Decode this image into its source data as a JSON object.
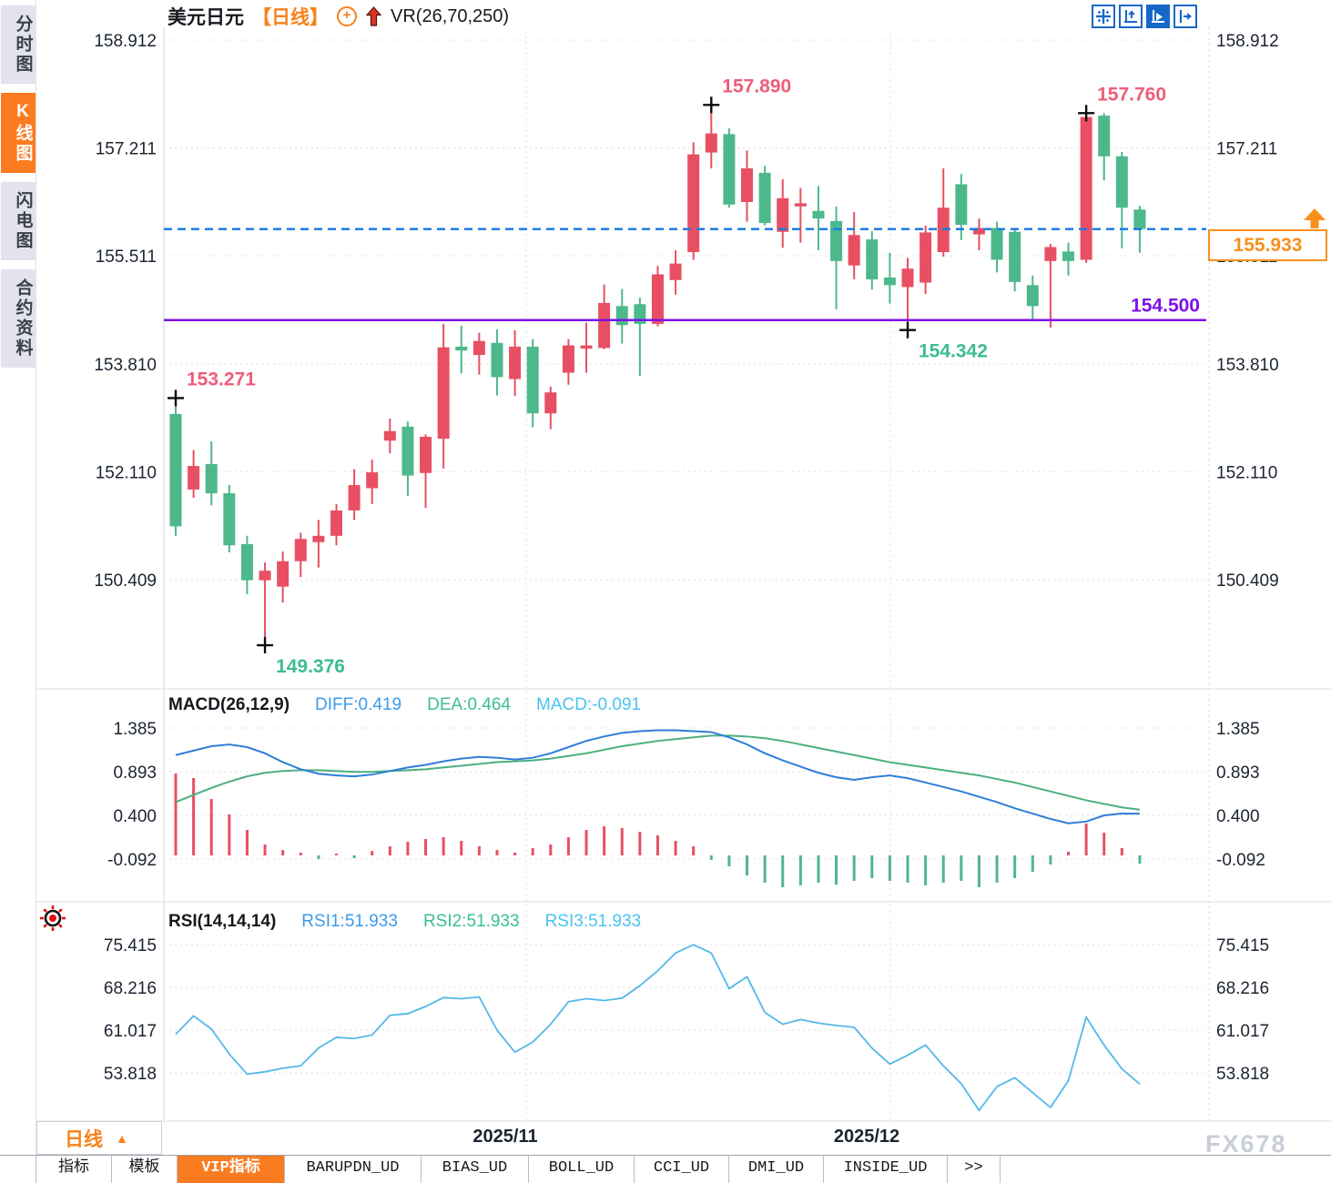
{
  "header": {
    "symbol": "美元日元",
    "period": "【日线】",
    "vr": "VR(26,70,250)"
  },
  "sidebar": {
    "items": [
      {
        "label": "分时图",
        "active": false
      },
      {
        "label": "K线图",
        "active": true
      },
      {
        "label": "闪电图",
        "active": false
      },
      {
        "label": "合约资料",
        "active": false
      }
    ]
  },
  "toolbar": {
    "icons": [
      "crosshair-icon",
      "axis-scale-icon",
      "auto-scale-icon",
      "go-to-latest-icon"
    ],
    "active_index": 2
  },
  "price_axis": {
    "labels": [
      "158.912",
      "157.211",
      "155.511",
      "153.810",
      "152.110",
      "150.409"
    ],
    "values": [
      158.912,
      157.211,
      155.511,
      153.81,
      152.11,
      150.409
    ]
  },
  "macd_axis": {
    "labels": [
      "1.385",
      "0.893",
      "0.400",
      "-0.092"
    ],
    "values": [
      1.385,
      0.893,
      0.4,
      -0.092
    ]
  },
  "rsi_axis": {
    "labels": [
      "75.415",
      "68.216",
      "61.017",
      "53.818"
    ],
    "values": [
      75.415,
      68.216,
      61.017,
      53.818
    ]
  },
  "macd_header": {
    "name": "MACD(26,12,9)",
    "diff": "DIFF:0.419",
    "dea": "DEA:0.464",
    "macd": "MACD:-0.091"
  },
  "rsi_header": {
    "name": "RSI(14,14,14)",
    "rsi1": "RSI1:51.933",
    "rsi2": "RSI2:51.933",
    "rsi3": "RSI3:51.933"
  },
  "current_price": {
    "label": "155.933",
    "value": 155.933
  },
  "support_line": {
    "label": "154.500",
    "value": 154.5
  },
  "markers": [
    {
      "text": "153.271",
      "price": 153.271,
      "candle": 0,
      "placement": "above",
      "color": "#ee5d78"
    },
    {
      "text": "149.376",
      "price": 149.376,
      "candle": 5,
      "placement": "below",
      "color": "#3dbd8d"
    },
    {
      "text": "157.890",
      "price": 157.89,
      "candle": 30,
      "placement": "above",
      "color": "#ee5d78"
    },
    {
      "text": "154.342",
      "price": 154.342,
      "candle": 41,
      "placement": "below",
      "color": "#3dbd8d"
    },
    {
      "text": "157.760",
      "price": 157.76,
      "candle": 51,
      "placement": "above",
      "color": "#ee5d78"
    }
  ],
  "xaxis": {
    "labels": [
      "2025/11",
      "2025/12"
    ]
  },
  "timeframe": {
    "label": "日线",
    "arrow": "▲"
  },
  "tabs": [
    {
      "label": "指标",
      "active": false
    },
    {
      "label": "模板",
      "active": false
    },
    {
      "label": "VIP指标",
      "active": true
    },
    {
      "label": "BARUPDN_UD",
      "active": false
    },
    {
      "label": "BIAS_UD",
      "active": false
    },
    {
      "label": "BOLL_UD",
      "active": false
    },
    {
      "label": "CCI_UD",
      "active": false
    },
    {
      "label": "DMI_UD",
      "active": false
    },
    {
      "label": "INSIDE_UD",
      "active": false
    },
    {
      "label": ">>",
      "active": false
    }
  ],
  "watermark": "FX678",
  "colors": {
    "up_candle": "#e84f63",
    "down_candle": "#4db88b",
    "current_price_line": "#1d7de4",
    "support_line": "#7d12e8",
    "accent_orange": "#f8821a",
    "marker_high": "#ee5d78",
    "marker_low": "#3dbd8d",
    "diff_line": "#2f7ed8",
    "dea_line": "#4caf7f",
    "rsi_line": "#54b8e8",
    "grid": "#dfdfe6",
    "axis_text": "#1c2430"
  },
  "chart_data": [
    {
      "type": "candlestick",
      "title": "美元日元 日线",
      "x_labels": [
        "2025/11",
        "2025/12"
      ],
      "y_ticks": [
        158.912,
        157.211,
        155.511,
        153.81,
        152.11,
        150.409
      ],
      "current_price": 155.933,
      "support_level": 154.5,
      "candles": {
        "open": [
          153.02,
          151.83,
          152.23,
          151.77,
          150.97,
          150.4,
          150.3,
          150.7,
          151.0,
          151.1,
          151.5,
          151.85,
          152.6,
          152.82,
          152.09,
          152.63,
          154.08,
          153.95,
          154.14,
          153.57,
          154.08,
          153.03,
          153.67,
          154.05,
          154.06,
          154.72,
          154.75,
          154.44,
          155.13,
          155.57,
          157.14,
          157.43,
          156.36,
          156.82,
          155.89,
          156.29,
          156.22,
          156.06,
          155.36,
          155.77,
          155.17,
          155.02,
          155.09,
          155.57,
          156.64,
          155.85,
          155.95,
          155.89,
          155.05,
          155.43,
          155.58,
          155.45,
          157.72,
          157.08,
          156.24
        ],
        "high": [
          153.271,
          152.45,
          152.59,
          151.9,
          151.1,
          150.68,
          150.85,
          151.15,
          151.35,
          151.6,
          152.15,
          152.3,
          152.95,
          152.9,
          152.7,
          154.44,
          154.41,
          154.3,
          154.35,
          154.34,
          154.2,
          153.45,
          154.2,
          154.46,
          155.06,
          154.99,
          154.85,
          155.35,
          155.6,
          157.3,
          157.89,
          157.52,
          157.17,
          156.93,
          156.72,
          156.58,
          156.61,
          156.29,
          156.2,
          155.9,
          155.56,
          155.48,
          155.99,
          156.89,
          156.8,
          156.1,
          156.05,
          155.95,
          155.2,
          155.7,
          155.72,
          157.76,
          157.76,
          157.15,
          156.3
        ],
        "low": [
          151.1,
          151.7,
          151.58,
          150.84,
          150.18,
          149.376,
          150.05,
          150.45,
          150.6,
          150.95,
          151.35,
          151.6,
          152.4,
          151.73,
          151.54,
          152.16,
          153.66,
          153.64,
          153.31,
          153.3,
          152.81,
          152.78,
          153.48,
          153.67,
          154.04,
          154.13,
          153.62,
          154.4,
          154.9,
          155.45,
          156.89,
          156.27,
          156.05,
          155.99,
          155.64,
          155.72,
          155.6,
          154.67,
          155.14,
          154.98,
          154.76,
          154.342,
          154.91,
          155.5,
          155.76,
          155.6,
          155.25,
          154.95,
          154.5,
          154.38,
          155.2,
          155.4,
          156.7,
          155.63,
          155.56
        ],
        "close": [
          151.25,
          152.2,
          151.77,
          150.95,
          150.4,
          150.55,
          150.7,
          151.05,
          151.1,
          151.5,
          151.9,
          152.1,
          152.75,
          152.05,
          152.66,
          154.07,
          154.02,
          154.17,
          153.6,
          154.08,
          153.03,
          153.36,
          154.1,
          154.1,
          154.77,
          154.42,
          154.44,
          155.22,
          155.39,
          157.11,
          157.44,
          156.32,
          156.89,
          156.03,
          156.42,
          156.34,
          156.1,
          155.43,
          155.84,
          155.14,
          155.05,
          155.31,
          155.88,
          156.27,
          156.0,
          155.95,
          155.45,
          155.1,
          154.72,
          155.65,
          155.43,
          157.7,
          157.08,
          156.27,
          155.933
        ]
      }
    },
    {
      "type": "bar",
      "title": "MACD(26,12,9)",
      "y_ticks": [
        1.385,
        0.893,
        0.4,
        -0.092
      ],
      "series": [
        {
          "name": "DIFF",
          "values": [
            1.08,
            1.13,
            1.18,
            1.2,
            1.17,
            1.1,
            1.0,
            0.92,
            0.87,
            0.85,
            0.84,
            0.86,
            0.9,
            0.94,
            0.97,
            1.01,
            1.04,
            1.06,
            1.05,
            1.03,
            1.05,
            1.1,
            1.17,
            1.24,
            1.29,
            1.33,
            1.35,
            1.36,
            1.36,
            1.35,
            1.34,
            1.28,
            1.2,
            1.1,
            1.02,
            0.95,
            0.88,
            0.83,
            0.8,
            0.83,
            0.85,
            0.82,
            0.77,
            0.72,
            0.67,
            0.61,
            0.55,
            0.48,
            0.42,
            0.36,
            0.31,
            0.33,
            0.4,
            0.42,
            0.419
          ]
        },
        {
          "name": "DEA",
          "values": [
            0.55,
            0.63,
            0.71,
            0.78,
            0.84,
            0.88,
            0.9,
            0.91,
            0.91,
            0.9,
            0.89,
            0.89,
            0.9,
            0.91,
            0.92,
            0.94,
            0.96,
            0.98,
            1.0,
            1.01,
            1.02,
            1.04,
            1.07,
            1.1,
            1.14,
            1.18,
            1.21,
            1.24,
            1.26,
            1.28,
            1.3,
            1.3,
            1.29,
            1.27,
            1.24,
            1.2,
            1.16,
            1.12,
            1.08,
            1.04,
            1.0,
            0.97,
            0.94,
            0.91,
            0.88,
            0.85,
            0.81,
            0.77,
            0.72,
            0.67,
            0.62,
            0.57,
            0.53,
            0.49,
            0.464
          ]
        },
        {
          "name": "MACD_hist",
          "values": [
            0.9,
            0.85,
            0.62,
            0.45,
            0.28,
            0.12,
            0.06,
            0.03,
            -0.04,
            0.02,
            -0.03,
            0.05,
            0.1,
            0.15,
            0.18,
            0.2,
            0.16,
            0.1,
            0.06,
            0.03,
            0.08,
            0.12,
            0.2,
            0.28,
            0.32,
            0.3,
            0.26,
            0.22,
            0.16,
            0.1,
            -0.05,
            -0.12,
            -0.22,
            -0.3,
            -0.35,
            -0.33,
            -0.3,
            -0.32,
            -0.28,
            -0.25,
            -0.28,
            -0.3,
            -0.33,
            -0.3,
            -0.28,
            -0.35,
            -0.3,
            -0.25,
            -0.18,
            -0.1,
            0.04,
            0.35,
            0.25,
            0.08,
            -0.091
          ]
        }
      ]
    },
    {
      "type": "line",
      "title": "RSI(14,14,14)",
      "y_ticks": [
        75.415,
        68.216,
        61.017,
        53.818
      ],
      "note": "RSI1, RSI2, RSI3 overlap at 51.933",
      "series": [
        {
          "name": "RSI1",
          "values": [
            60.3,
            63.4,
            61.2,
            57.0,
            53.6,
            54.0,
            54.6,
            55.0,
            58.0,
            59.8,
            59.6,
            60.2,
            63.5,
            63.8,
            65.0,
            66.5,
            66.3,
            66.6,
            61.0,
            57.3,
            59.0,
            62.0,
            65.8,
            66.3,
            66.0,
            66.4,
            68.5,
            71.0,
            74.0,
            75.4,
            74.0,
            68.0,
            70.0,
            64.0,
            62.0,
            62.8,
            62.2,
            61.8,
            61.5,
            58.0,
            55.3,
            56.8,
            58.5,
            55.0,
            52.0,
            47.5,
            51.5,
            53.0,
            50.5,
            48.0,
            52.5,
            63.2,
            58.5,
            54.5,
            51.933
          ]
        }
      ]
    }
  ]
}
